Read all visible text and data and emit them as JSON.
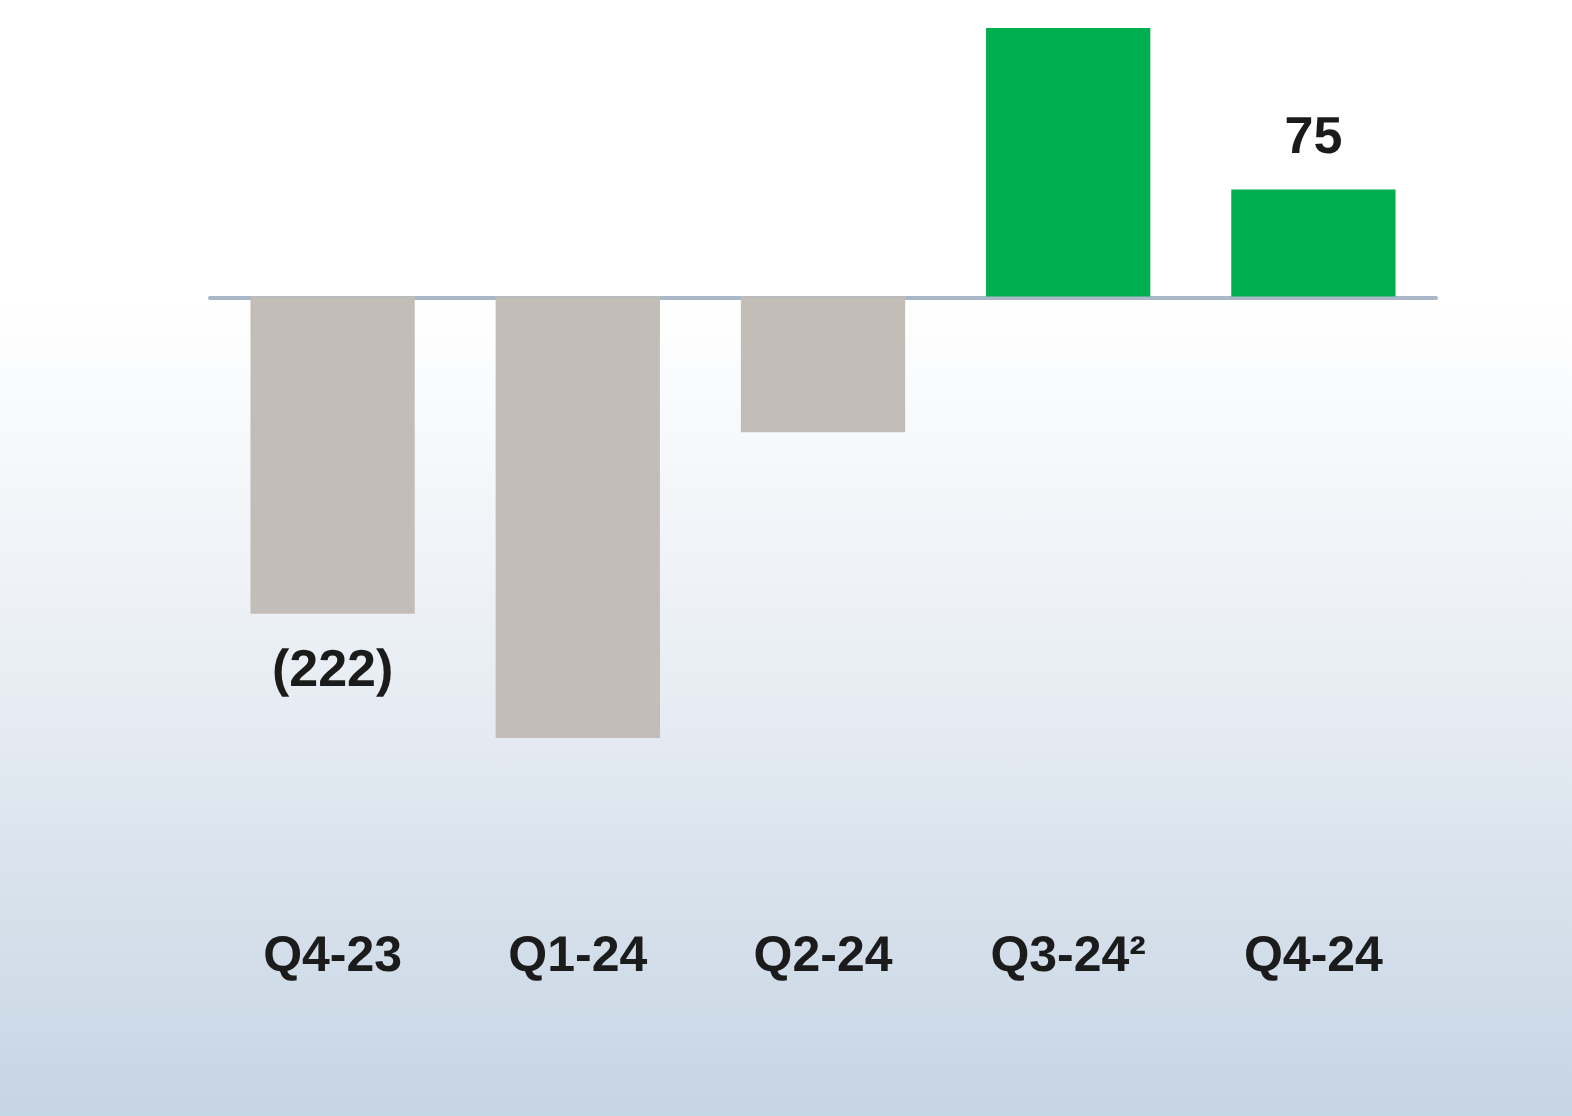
{
  "chart_data": {
    "type": "bar",
    "categories": [
      "Q4-23",
      "Q1-24",
      "Q2-24",
      "Q3-24²",
      "Q4-24"
    ],
    "values": [
      -222,
      -309,
      -95,
      188,
      75
    ],
    "colors": [
      "#c2bdb6",
      "#c2bdb6",
      "#c2bdb6",
      "#00b050",
      "#00b050"
    ],
    "value_labels": [
      "(222)",
      null,
      null,
      null,
      "75"
    ]
  }
}
